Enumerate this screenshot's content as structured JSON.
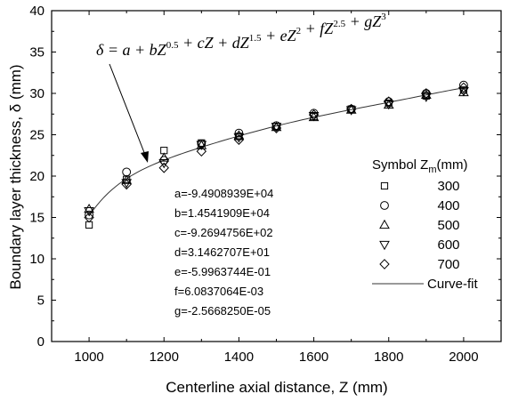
{
  "chart_data": {
    "type": "scatter",
    "xlabel": "Centerline axial distance, Z (mm)",
    "ylabel": "Boundary layer thickness, δ (mm)",
    "xlim": [
      900,
      2100
    ],
    "ylim": [
      0,
      40
    ],
    "xticks": [
      "1000",
      "1200",
      "1400",
      "1600",
      "1800",
      "2000"
    ],
    "yticks": [
      "0",
      "5",
      "10",
      "15",
      "20",
      "25",
      "30",
      "35",
      "40"
    ],
    "grid": false,
    "legend": {
      "position": "right",
      "header_symbol": "Symbol",
      "header_zm_base": "Z",
      "header_zm_sub": "m",
      "header_zm_unit": "(mm)",
      "curve_label": "Curve-fit"
    },
    "series": [
      {
        "name": "300",
        "marker": "square",
        "x": [
          1000,
          1100,
          1200,
          1300,
          1400,
          1500,
          1600,
          1700,
          1800,
          1900,
          2000
        ],
        "y": [
          14.1,
          19.6,
          23.1,
          24.0,
          24.8,
          26.0,
          27.2,
          28.1,
          28.8,
          29.7,
          30.4
        ]
      },
      {
        "name": "400",
        "marker": "circle",
        "x": [
          1000,
          1100,
          1200,
          1300,
          1400,
          1500,
          1600,
          1700,
          1800,
          1900,
          2000
        ],
        "y": [
          15.3,
          20.5,
          21.9,
          23.9,
          25.2,
          26.1,
          27.6,
          28.1,
          29.0,
          30.0,
          31.0
        ]
      },
      {
        "name": "500",
        "marker": "triangle-up",
        "x": [
          1000,
          1100,
          1200,
          1300,
          1400,
          1500,
          1600,
          1700,
          1800,
          1900,
          2000
        ],
        "y": [
          16.0,
          19.5,
          22.2,
          23.7,
          24.9,
          25.9,
          27.1,
          28.0,
          28.6,
          29.8,
          30.1
        ]
      },
      {
        "name": "600",
        "marker": "triangle-down",
        "x": [
          1000,
          1100,
          1200,
          1300,
          1400,
          1500,
          1600,
          1700,
          1800,
          1900,
          2000
        ],
        "y": [
          15.8,
          19.2,
          21.6,
          23.8,
          24.7,
          26.0,
          27.3,
          28.0,
          28.7,
          29.6,
          30.3
        ]
      },
      {
        "name": "700",
        "marker": "diamond",
        "x": [
          1000,
          1100,
          1200,
          1300,
          1400,
          1500,
          1600,
          1700,
          1800,
          1900,
          2000
        ],
        "y": [
          15.0,
          19.0,
          21.0,
          23.0,
          24.4,
          25.8,
          27.4,
          28.1,
          29.0,
          30.0,
          30.7
        ]
      }
    ],
    "curve_fit": {
      "name": "Curve-fit",
      "coefficients": {
        "a": -94908.939,
        "b": 14541.909,
        "c": -926.94756,
        "d": 31.462707,
        "e": -0.59963744,
        "f": 0.0060837064,
        "g": -2.566825e-05
      },
      "z_range": [
        1000,
        2000
      ]
    },
    "formula": {
      "lhs": "δ",
      "terms": [
        {
          "text": " = a + bZ",
          "sup": "0.5"
        },
        {
          "text": " + cZ + dZ",
          "sup": "1.5"
        },
        {
          "text": " + eZ",
          "sup": "2"
        },
        {
          "text": " + fZ",
          "sup": "2.5"
        },
        {
          "text": " + gZ",
          "sup": "3"
        }
      ]
    },
    "coefficient_labels": [
      "a=-9.4908939E+04",
      "b=1.4541909E+04",
      "c=-9.2694756E+02",
      "d=3.1462707E+01",
      "e=-5.9963744E-01",
      "f=6.0837064E-03",
      "g=-2.5668250E-05"
    ]
  }
}
